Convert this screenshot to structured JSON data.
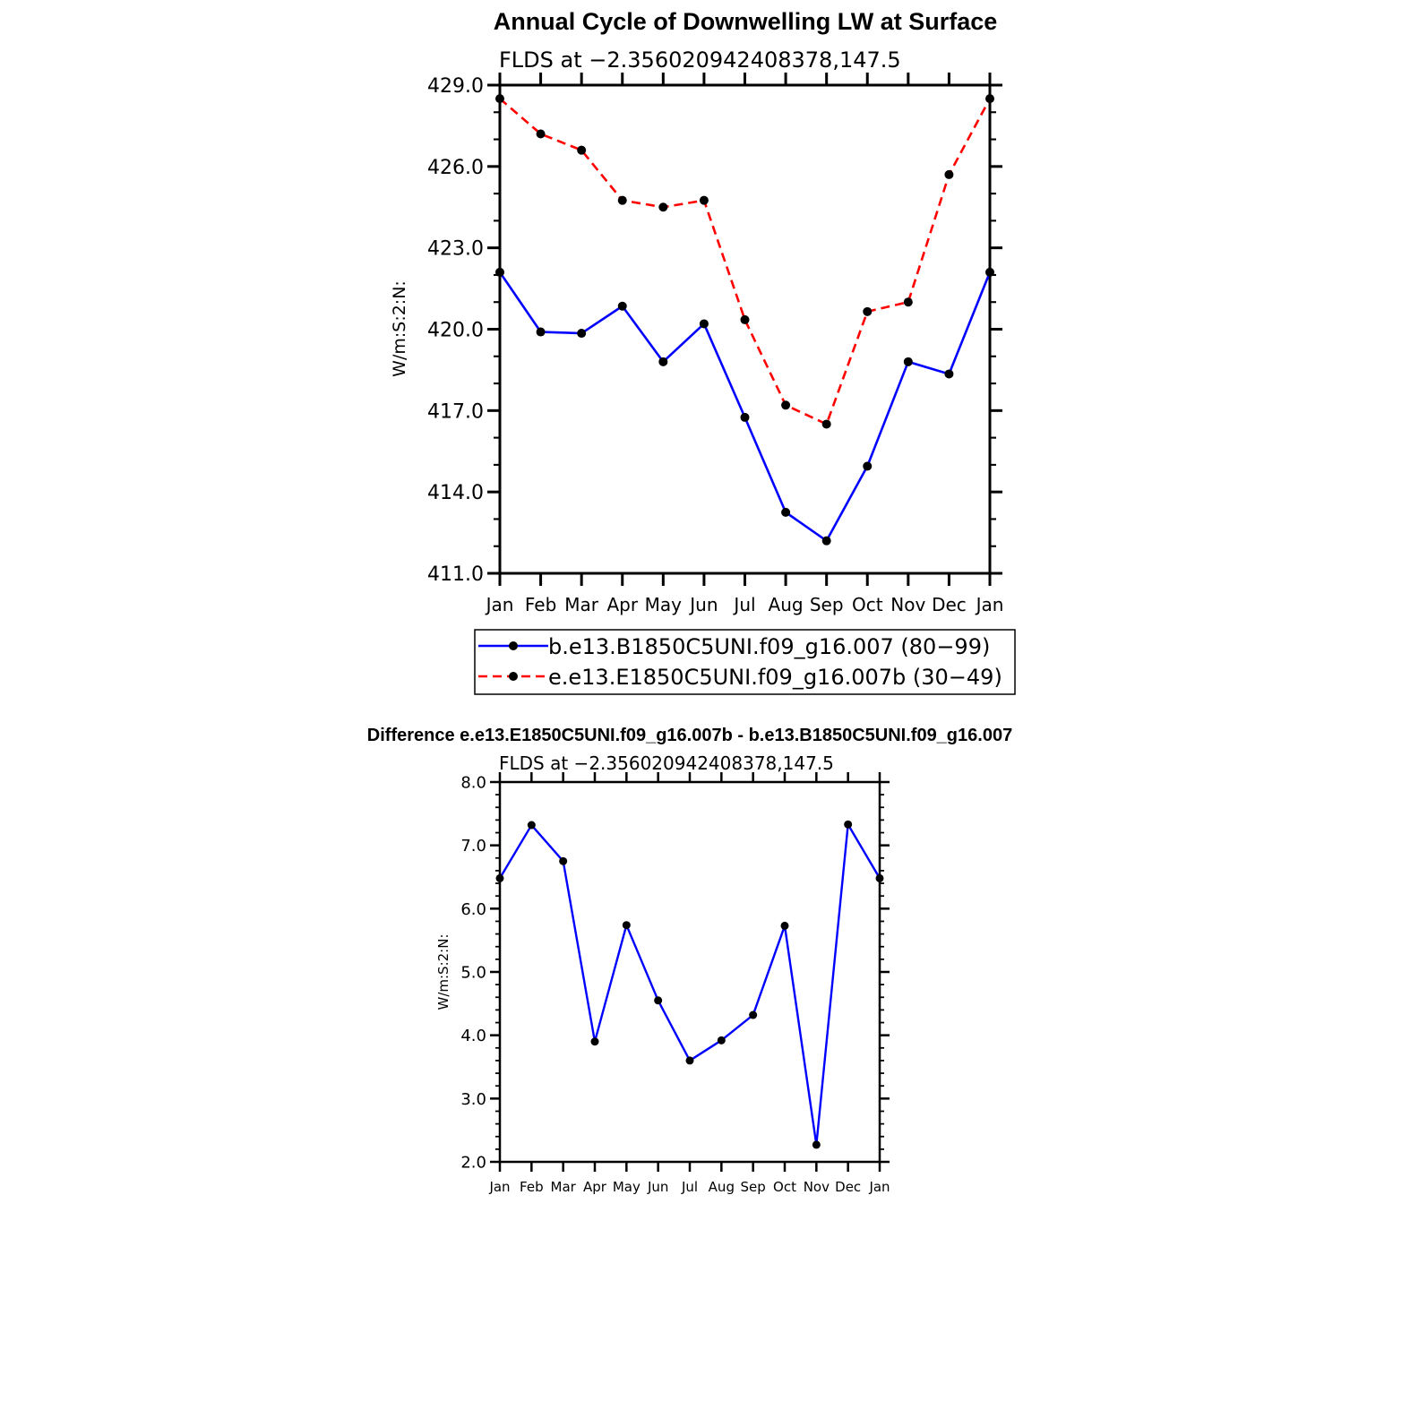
{
  "chart_data": [
    {
      "type": "line",
      "title": "Annual Cycle of Downwelling LW at Surface",
      "subtitle": "FLDS at −2.356020942408378,147.5",
      "xlabel": "",
      "ylabel": "W/m:S:2:N:",
      "categories": [
        "Jan",
        "Feb",
        "Mar",
        "Apr",
        "May",
        "Jun",
        "Jul",
        "Aug",
        "Sep",
        "Oct",
        "Nov",
        "Dec",
        "Jan"
      ],
      "yticks": [
        "411.0",
        "414.0",
        "417.0",
        "420.0",
        "423.0",
        "426.0",
        "429.0"
      ],
      "ylim": [
        411,
        429
      ],
      "grid": false,
      "legend_position": "bottom",
      "series": [
        {
          "name": "b.e13.B1850C5UNI.f09_g16.007 (80−99)",
          "color": "#0000ff",
          "dash": "solid",
          "values": [
            422.1,
            419.9,
            419.85,
            420.85,
            418.8,
            420.2,
            416.75,
            413.25,
            412.2,
            414.95,
            418.8,
            418.35,
            422.1
          ]
        },
        {
          "name": "e.e13.E1850C5UNI.f09_g16.007b (30−49)",
          "color": "#ff0000",
          "dash": "dashed",
          "values": [
            428.5,
            427.2,
            426.6,
            424.75,
            424.5,
            424.75,
            420.35,
            417.2,
            416.5,
            420.65,
            421.0,
            425.7,
            428.5
          ]
        }
      ]
    },
    {
      "type": "line",
      "title": "Difference e.e13.E1850C5UNI.f09_g16.007b - b.e13.B1850C5UNI.f09_g16.007",
      "subtitle": "FLDS at −2.356020942408378,147.5",
      "xlabel": "",
      "ylabel": "W/m:S:2:N:",
      "categories": [
        "Jan",
        "Feb",
        "Mar",
        "Apr",
        "May",
        "Jun",
        "Jul",
        "Aug",
        "Sep",
        "Oct",
        "Nov",
        "Dec",
        "Jan"
      ],
      "yticks": [
        "2.0",
        "3.0",
        "4.0",
        "5.0",
        "6.0",
        "7.0",
        "8.0"
      ],
      "ylim": [
        2,
        8
      ],
      "grid": false,
      "series": [
        {
          "name": "",
          "color": "#0000ff",
          "dash": "solid",
          "values": [
            6.48,
            7.32,
            6.75,
            3.9,
            5.74,
            4.55,
            3.6,
            3.92,
            4.32,
            5.73,
            2.27,
            7.33,
            6.48
          ]
        }
      ]
    }
  ]
}
